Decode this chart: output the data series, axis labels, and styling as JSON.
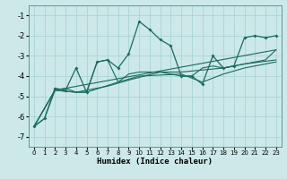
{
  "title": "",
  "xlabel": "Humidex (Indice chaleur)",
  "ylabel": "",
  "bg_color": "#cce8e8",
  "line_color": "#1a6b5e",
  "grid_color": "#aad4d4",
  "xlim": [
    -0.5,
    23.5
  ],
  "ylim": [
    -7.5,
    -0.5
  ],
  "xticks": [
    0,
    1,
    2,
    3,
    4,
    5,
    6,
    7,
    8,
    9,
    10,
    11,
    12,
    13,
    14,
    15,
    16,
    17,
    18,
    19,
    20,
    21,
    22,
    23
  ],
  "yticks": [
    -7,
    -6,
    -5,
    -4,
    -3,
    -2,
    -1
  ],
  "series1": [
    [
      0,
      -6.5
    ],
    [
      1,
      -6.1
    ],
    [
      2,
      -4.6
    ],
    [
      3,
      -4.7
    ],
    [
      4,
      -3.6
    ],
    [
      5,
      -4.8
    ],
    [
      6,
      -3.3
    ],
    [
      7,
      -3.2
    ],
    [
      8,
      -3.6
    ],
    [
      9,
      -2.9
    ],
    [
      10,
      -1.3
    ],
    [
      11,
      -1.7
    ],
    [
      12,
      -2.2
    ],
    [
      13,
      -2.5
    ],
    [
      14,
      -4.0
    ],
    [
      15,
      -4.0
    ],
    [
      16,
      -4.4
    ],
    [
      17,
      -3.0
    ],
    [
      18,
      -3.6
    ],
    [
      19,
      -3.5
    ],
    [
      20,
      -2.1
    ],
    [
      21,
      -2.0
    ],
    [
      22,
      -2.1
    ],
    [
      23,
      -2.0
    ]
  ],
  "series2": [
    [
      0,
      -6.5
    ],
    [
      2,
      -4.7
    ],
    [
      23,
      -2.7
    ]
  ],
  "series3": [
    [
      0,
      -6.5
    ],
    [
      2,
      -4.7
    ],
    [
      4,
      -4.8
    ],
    [
      5,
      -4.8
    ],
    [
      8,
      -4.3
    ],
    [
      10,
      -4.0
    ],
    [
      14,
      -3.9
    ],
    [
      16,
      -4.3
    ],
    [
      18,
      -3.9
    ],
    [
      20,
      -3.6
    ],
    [
      23,
      -3.3
    ]
  ],
  "series4": [
    [
      0,
      -6.5
    ],
    [
      1,
      -6.1
    ],
    [
      2,
      -4.7
    ],
    [
      3,
      -4.6
    ],
    [
      4,
      -4.8
    ],
    [
      5,
      -4.8
    ],
    [
      6,
      -3.3
    ],
    [
      7,
      -3.2
    ],
    [
      8,
      -4.3
    ],
    [
      9,
      -3.9
    ],
    [
      10,
      -3.8
    ],
    [
      12,
      -3.8
    ],
    [
      14,
      -4.0
    ],
    [
      15,
      -4.0
    ],
    [
      16,
      -3.6
    ],
    [
      17,
      -3.5
    ],
    [
      18,
      -3.6
    ],
    [
      20,
      -3.4
    ],
    [
      22,
      -3.2
    ],
    [
      23,
      -2.7
    ]
  ],
  "series5": [
    [
      0,
      -6.5
    ],
    [
      2,
      -4.7
    ],
    [
      4,
      -4.8
    ],
    [
      7,
      -4.5
    ],
    [
      9,
      -4.2
    ],
    [
      12,
      -3.8
    ],
    [
      14,
      -3.8
    ],
    [
      16,
      -3.7
    ],
    [
      18,
      -3.6
    ],
    [
      20,
      -3.4
    ],
    [
      23,
      -3.2
    ]
  ]
}
